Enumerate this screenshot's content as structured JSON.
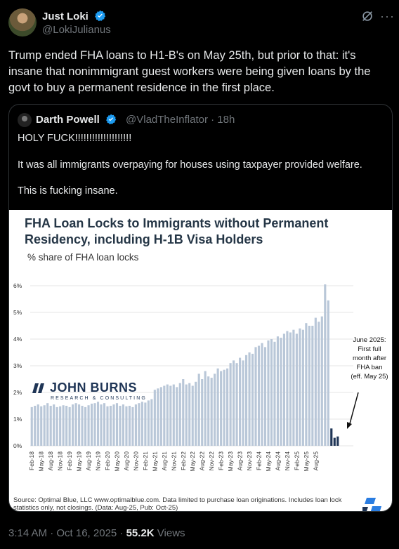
{
  "author": {
    "name": "Just Loki",
    "handle": "@LokiJulianus"
  },
  "tweet": {
    "text": "Trump ended FHA loans to H1-B's on May 25th, but prior to that: it's insane that nonimmigrant guest workers were being given loans by the govt to buy a permanent residence in the first place."
  },
  "quoted": {
    "name": "Darth Powell",
    "handle": "@VladTheInflator",
    "time": "· 18h",
    "lines": [
      "HOLY FUCK!!!!!!!!!!!!!!!!!!!!",
      "It was all immigrants overpaying for houses using taxpayer provided welfare.",
      "This is fucking insane."
    ]
  },
  "chart_data": {
    "type": "bar",
    "title": "FHA Loan Locks to Immigrants without Permanent Residency, including H-1B Visa Holders",
    "subtitle": "% share of FHA loan locks",
    "ylim": [
      0,
      6.5
    ],
    "yticks": [
      "0%",
      "1%",
      "2%",
      "3%",
      "4%",
      "5%",
      "6%"
    ],
    "xticks": [
      "Feb-18",
      "May-18",
      "Aug-18",
      "Nov-18",
      "Feb-19",
      "May-19",
      "Aug-19",
      "Nov-19",
      "Feb-20",
      "May-20",
      "Aug-20",
      "Nov-20",
      "Feb-21",
      "May-21",
      "Aug-21",
      "Nov-21",
      "Feb-22",
      "May-22",
      "Aug-22",
      "Nov-22",
      "Feb-23",
      "May-23",
      "Aug-23",
      "Nov-23",
      "Feb-24",
      "May-24",
      "Aug-24",
      "Nov-24",
      "Feb-25",
      "May-25",
      "Aug-25"
    ],
    "values": [
      1.45,
      1.5,
      1.55,
      1.48,
      1.52,
      1.6,
      1.5,
      1.55,
      1.45,
      1.48,
      1.52,
      1.5,
      1.45,
      1.55,
      1.6,
      1.55,
      1.5,
      1.45,
      1.52,
      1.58,
      1.6,
      1.65,
      1.55,
      1.6,
      1.48,
      1.5,
      1.55,
      1.6,
      1.5,
      1.55,
      1.48,
      1.5,
      1.45,
      1.55,
      1.6,
      1.65,
      1.62,
      1.7,
      1.75,
      2.1,
      2.15,
      2.2,
      2.25,
      2.3,
      2.25,
      2.3,
      2.2,
      2.35,
      2.5,
      2.3,
      2.35,
      2.25,
      2.4,
      2.7,
      2.5,
      2.8,
      2.6,
      2.55,
      2.7,
      2.9,
      2.8,
      2.85,
      2.9,
      3.1,
      3.2,
      3.1,
      3.3,
      3.2,
      3.4,
      3.5,
      3.45,
      3.7,
      3.75,
      3.85,
      3.7,
      3.95,
      4.0,
      3.9,
      4.1,
      4.05,
      4.2,
      4.3,
      4.25,
      4.35,
      4.2,
      4.4,
      4.35,
      4.6,
      4.5,
      4.5,
      4.8,
      4.65,
      4.85,
      6.05,
      5.45,
      0.65,
      0.3,
      0.35
    ],
    "highlight_from_index": 95,
    "annotation": "June 2025: First full month after FHA ban (eff. May 25)",
    "source": "Source: Optimal Blue, LLC www.optimalblue.com. Data limited to purchase loan originations. Includes loan lock statistics only, not closings. (Data: Aug-25, Pub: Oct-25)",
    "colors": {
      "bar": "#b9c7d8",
      "highlight": "#1f3556",
      "grid": "#e6e6e6"
    }
  },
  "logo": {
    "name": "JOHN BURNS",
    "tagline": "RESEARCH & CONSULTING"
  },
  "footer": {
    "time": "3:14 AM · Oct 16, 2025 · ",
    "views": "55.2K",
    "views_label": " Views"
  }
}
